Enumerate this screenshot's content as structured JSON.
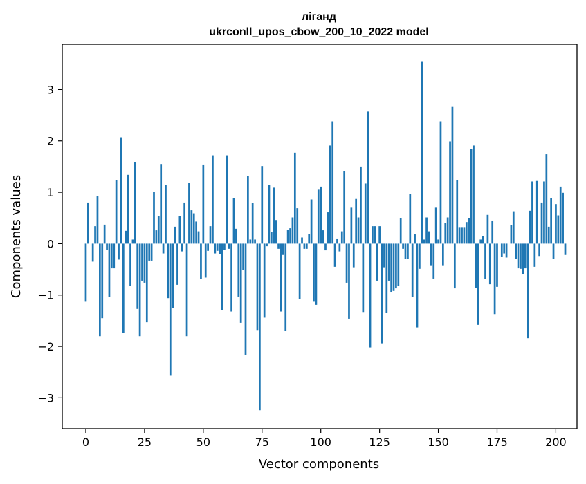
{
  "chart_data": {
    "type": "bar",
    "title": "ліганд",
    "subtitle": "ukrconll_upos_cbow_200_10_2022 model",
    "xlabel": "Vector components",
    "ylabel": "Components values",
    "xlim": [
      -10,
      209
    ],
    "ylim": [
      -3.6,
      3.88
    ],
    "xticks": [
      0,
      25,
      50,
      75,
      100,
      125,
      150,
      175,
      200
    ],
    "yticks": [
      -3,
      -2,
      -1,
      0,
      1,
      2,
      3
    ],
    "ytick_labels": [
      "−3",
      "−2",
      "−1",
      "0",
      "1",
      "2",
      "3"
    ],
    "bar_color": "#1f77b4",
    "grid": false,
    "legend": "none",
    "series": [
      {
        "values": [
          -1.13,
          0.8,
          0.0,
          -0.35,
          0.34,
          0.92,
          -1.8,
          -1.45,
          0.37,
          -0.12,
          -1.04,
          -0.48,
          -0.48,
          1.24,
          -0.31,
          2.07,
          -1.73,
          0.25,
          1.34,
          -0.82,
          0.08,
          1.59,
          -1.27,
          -1.8,
          -0.72,
          -0.76,
          -1.53,
          -0.33,
          -0.33,
          1.01,
          0.26,
          0.53,
          1.55,
          -0.19,
          1.14,
          -1.06,
          -2.57,
          -1.25,
          0.33,
          -0.8,
          0.53,
          -0.15,
          0.8,
          -1.8,
          1.18,
          0.65,
          0.59,
          0.43,
          0.24,
          -0.69,
          1.54,
          -0.66,
          -0.14,
          0.34,
          1.72,
          -0.19,
          -0.14,
          -0.2,
          -1.29,
          -0.12,
          1.72,
          -0.1,
          -1.32,
          0.88,
          0.29,
          -1.03,
          -1.54,
          -0.51,
          -2.16,
          1.32,
          0.08,
          0.79,
          0.08,
          -1.68,
          -3.24,
          1.51,
          -1.44,
          -0.05,
          1.14,
          0.23,
          1.09,
          0.46,
          -0.1,
          -1.32,
          -0.22,
          -1.7,
          0.27,
          0.3,
          0.51,
          1.77,
          0.69,
          -1.08,
          0.12,
          -0.1,
          -0.1,
          0.19,
          0.86,
          -1.13,
          -1.19,
          1.05,
          1.11,
          0.26,
          -0.13,
          0.61,
          1.91,
          2.38,
          -0.45,
          0.1,
          -0.15,
          0.24,
          1.41,
          -0.76,
          -1.46,
          0.7,
          -0.46,
          0.87,
          0.51,
          1.5,
          -1.33,
          1.17,
          2.57,
          -2.02,
          0.34,
          0.34,
          -0.72,
          0.34,
          -1.94,
          -0.46,
          -1.34,
          -0.72,
          -0.95,
          -0.92,
          -0.87,
          -0.82,
          0.5,
          -0.1,
          -0.3,
          -0.3,
          0.97,
          -1.04,
          0.18,
          -1.63,
          -0.49,
          3.55,
          0.08,
          0.51,
          0.24,
          -0.42,
          -0.68,
          0.7,
          0.08,
          2.38,
          -0.42,
          0.4,
          0.51,
          1.99,
          2.66,
          -0.87,
          1.23,
          0.31,
          0.31,
          0.31,
          0.42,
          0.49,
          1.84,
          1.91,
          -0.86,
          -1.58,
          0.08,
          0.14,
          -0.69,
          0.56,
          -0.79,
          0.45,
          -1.37,
          -0.84,
          0.0,
          -0.25,
          -0.19,
          -0.27,
          0.0,
          0.36,
          0.63,
          -0.3,
          -0.48,
          -0.49,
          -0.6,
          -0.48,
          -1.84,
          0.64,
          1.21,
          -0.45,
          1.22,
          -0.24,
          0.8,
          1.21,
          1.74,
          0.33,
          0.88,
          -0.3,
          0.77,
          0.55,
          1.11,
          0.99,
          -0.22
        ]
      }
    ]
  }
}
